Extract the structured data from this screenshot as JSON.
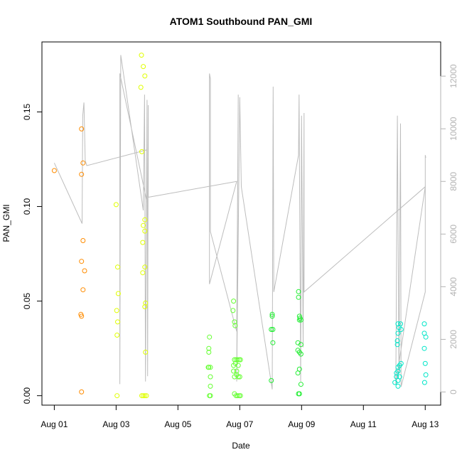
{
  "chart_data": {
    "type": "scatter",
    "title": "ATOM1 Southbound PAN_GMI",
    "xlabel": "Date",
    "ylabel": "PAN_GMI",
    "x_ticks": [
      "Aug 01",
      "Aug 03",
      "Aug 05",
      "Aug 07",
      "Aug 09",
      "Aug 11",
      "Aug 13"
    ],
    "x_tick_values": [
      1,
      3,
      5,
      7,
      9,
      11,
      13
    ],
    "xlim": [
      0.6,
      13.5
    ],
    "ylim": [
      -0.005,
      0.187
    ],
    "y_ticks": [
      0.0,
      0.05,
      0.1,
      0.15
    ],
    "y_tick_labels": [
      "0.00",
      "0.05",
      "0.10",
      "0.15"
    ],
    "y2lim": [
      -500,
      13300
    ],
    "y2_ticks": [
      0,
      2000,
      4000,
      6000,
      8000,
      10000,
      12000
    ],
    "y2_tick_labels": [
      "0",
      "2000",
      "4000",
      "6000",
      "8000",
      "10000",
      "12000"
    ],
    "grid": false,
    "legend": "none",
    "colors": {
      "altitude_line": "#bdbdbd",
      "aug01": "#ff8c00",
      "aug03": "#e0ff00",
      "aug06": "#66ff33",
      "aug08": "#22ee33",
      "aug12": "#00e6c8"
    },
    "series": [
      {
        "color": "#ff8c00",
        "points": [
          [
            1.0,
            0.119
          ],
          [
            1.88,
            0.141
          ],
          [
            1.93,
            0.123
          ],
          [
            1.88,
            0.117
          ],
          [
            1.93,
            0.082
          ],
          [
            1.88,
            0.071
          ],
          [
            1.98,
            0.066
          ],
          [
            1.93,
            0.056
          ],
          [
            1.86,
            0.043
          ],
          [
            1.88,
            0.042
          ],
          [
            1.88,
            0.002
          ]
        ]
      },
      {
        "color": "#e0ff00",
        "points": [
          [
            3.0,
            0.101
          ],
          [
            3.05,
            0.068
          ],
          [
            3.07,
            0.054
          ],
          [
            3.02,
            0.045
          ],
          [
            3.05,
            0.039
          ],
          [
            3.03,
            0.032
          ],
          [
            3.03,
            0.0
          ],
          [
            3.82,
            0.18
          ],
          [
            3.88,
            0.174
          ],
          [
            3.93,
            0.169
          ],
          [
            3.8,
            0.163
          ],
          [
            3.83,
            0.129
          ],
          [
            3.93,
            0.093
          ],
          [
            3.88,
            0.09
          ],
          [
            3.93,
            0.087
          ],
          [
            3.86,
            0.081
          ],
          [
            3.93,
            0.068
          ],
          [
            3.86,
            0.065
          ],
          [
            3.95,
            0.049
          ],
          [
            3.93,
            0.047
          ],
          [
            3.95,
            0.023
          ],
          [
            3.83,
            0.0
          ],
          [
            3.88,
            0.0
          ],
          [
            3.93,
            0.0
          ],
          [
            3.98,
            0.0
          ]
        ]
      },
      {
        "color": "#66ff33",
        "points": [
          [
            6.02,
            0.031
          ],
          [
            6.0,
            0.025
          ],
          [
            6.0,
            0.023
          ],
          [
            6.0,
            0.015
          ],
          [
            6.05,
            0.015
          ],
          [
            5.98,
            0.015
          ],
          [
            6.05,
            0.01
          ],
          [
            6.05,
            0.005
          ],
          [
            6.02,
            0.0
          ],
          [
            6.05,
            0.0
          ],
          [
            6.8,
            0.05
          ],
          [
            6.78,
            0.045
          ],
          [
            6.83,
            0.039
          ],
          [
            6.85,
            0.037
          ],
          [
            6.83,
            0.019
          ],
          [
            6.88,
            0.019
          ],
          [
            6.93,
            0.019
          ],
          [
            6.98,
            0.019
          ],
          [
            7.02,
            0.019
          ],
          [
            6.8,
            0.016
          ],
          [
            6.86,
            0.017
          ],
          [
            6.95,
            0.016
          ],
          [
            6.8,
            0.013
          ],
          [
            6.9,
            0.013
          ],
          [
            6.83,
            0.01
          ],
          [
            6.9,
            0.011
          ],
          [
            6.95,
            0.01
          ],
          [
            7.0,
            0.01
          ],
          [
            6.83,
            0.001
          ],
          [
            6.88,
            0.0
          ],
          [
            6.93,
            0.0
          ],
          [
            6.98,
            0.0
          ],
          [
            7.02,
            0.0
          ]
        ]
      },
      {
        "color": "#22ee33",
        "points": [
          [
            8.05,
            0.043
          ],
          [
            8.05,
            0.042
          ],
          [
            8.02,
            0.035
          ],
          [
            8.07,
            0.035
          ],
          [
            8.07,
            0.028
          ],
          [
            8.02,
            0.008
          ],
          [
            8.9,
            0.055
          ],
          [
            8.9,
            0.052
          ],
          [
            8.93,
            0.042
          ],
          [
            8.95,
            0.041
          ],
          [
            8.93,
            0.04
          ],
          [
            8.98,
            0.04
          ],
          [
            8.88,
            0.028
          ],
          [
            8.98,
            0.027
          ],
          [
            8.88,
            0.024
          ],
          [
            8.93,
            0.023
          ],
          [
            8.98,
            0.022
          ],
          [
            8.93,
            0.014
          ],
          [
            8.88,
            0.012
          ],
          [
            8.98,
            0.006
          ],
          [
            8.9,
            0.001
          ],
          [
            8.93,
            0.001
          ]
        ]
      },
      {
        "color": "#00e6c8",
        "points": [
          [
            12.12,
            0.038
          ],
          [
            12.2,
            0.038
          ],
          [
            12.15,
            0.036
          ],
          [
            12.22,
            0.035
          ],
          [
            12.12,
            0.033
          ],
          [
            12.1,
            0.029
          ],
          [
            12.1,
            0.027
          ],
          [
            12.22,
            0.017
          ],
          [
            12.17,
            0.016
          ],
          [
            12.12,
            0.015
          ],
          [
            12.12,
            0.013
          ],
          [
            12.07,
            0.012
          ],
          [
            12.07,
            0.01
          ],
          [
            12.17,
            0.01
          ],
          [
            12.12,
            0.008
          ],
          [
            12.02,
            0.007
          ],
          [
            12.12,
            0.005
          ],
          [
            12.97,
            0.038
          ],
          [
            12.97,
            0.033
          ],
          [
            13.02,
            0.031
          ],
          [
            12.97,
            0.025
          ],
          [
            13.0,
            0.017
          ],
          [
            13.02,
            0.011
          ],
          [
            12.98,
            0.007
          ]
        ]
      }
    ],
    "altitude_series": {
      "axis": "right",
      "color": "#bdbdbd",
      "points": [
        [
          1.0,
          8700
        ],
        [
          1.9,
          6400
        ],
        [
          1.92,
          10500
        ],
        [
          1.96,
          11000
        ],
        [
          2.0,
          8800
        ],
        [
          2.05,
          8600
        ],
        [
          4.0,
          9200
        ],
        [
          4.0,
          7200
        ],
        [
          3.12,
          12100
        ],
        [
          3.12,
          300
        ],
        [
          3.15,
          12800
        ],
        [
          3.3,
          11600
        ],
        [
          3.88,
          6900
        ],
        [
          3.92,
          11300
        ],
        [
          3.95,
          400
        ],
        [
          4.0,
          11100
        ],
        [
          4.02,
          600
        ],
        [
          4.04,
          10900
        ],
        [
          4.04,
          7400
        ],
        [
          6.9,
          8000
        ],
        [
          6.02,
          4100
        ],
        [
          6.02,
          12100
        ],
        [
          6.05,
          11900
        ],
        [
          6.05,
          6100
        ],
        [
          6.9,
          2300
        ],
        [
          6.95,
          11300
        ],
        [
          6.9,
          400
        ],
        [
          7.0,
          11200
        ],
        [
          7.05,
          7800
        ],
        [
          8.05,
          100
        ],
        [
          8.08,
          11600
        ],
        [
          8.1,
          3800
        ],
        [
          8.9,
          9000
        ],
        [
          8.92,
          11300
        ],
        [
          8.97,
          400
        ],
        [
          9.0,
          10500
        ],
        [
          9.05,
          1700
        ],
        [
          9.08,
          10600
        ],
        [
          9.08,
          3800
        ],
        [
          13.0,
          7800
        ],
        [
          12.05,
          300
        ],
        [
          12.1,
          10500
        ],
        [
          12.15,
          700
        ],
        [
          12.2,
          10200
        ],
        [
          12.22,
          200
        ],
        [
          13.0,
          3800
        ],
        [
          13.0,
          9000
        ],
        [
          13.02,
          8900
        ]
      ]
    }
  }
}
